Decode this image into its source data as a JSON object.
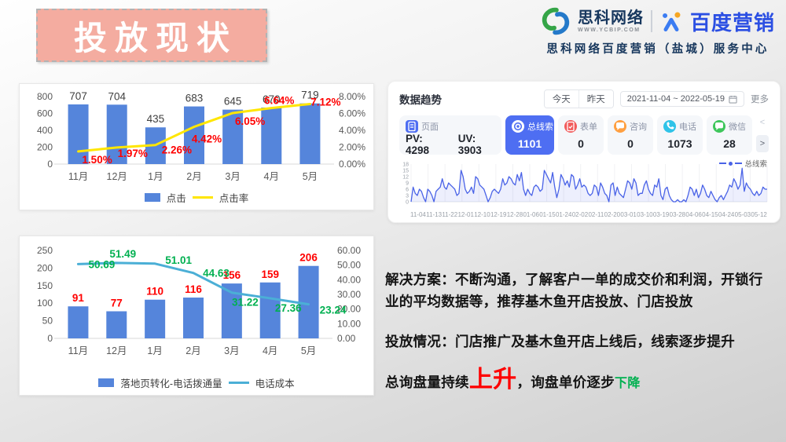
{
  "slide_title": "投放现状",
  "brand": {
    "company": "思科网络",
    "website": "WWW.YCBIP.COM",
    "partner": "百度营销",
    "center": "思科网络百度营销（盐城）服务中心"
  },
  "chart_data": [
    {
      "type": "bar",
      "subtype": "bar+line combo",
      "categories": [
        "11月",
        "12月",
        "1月",
        "2月",
        "3月",
        "4月",
        "5月"
      ],
      "series": [
        {
          "name": "点击",
          "type": "bar",
          "color": "#5585DB",
          "values": [
            707,
            704,
            435,
            683,
            645,
            670,
            719
          ],
          "labels": [
            "707",
            "704",
            "435",
            "683",
            "645",
            "670",
            "719"
          ],
          "label_color": "#404040"
        },
        {
          "name": "点击率",
          "type": "line",
          "color": "#FFE600",
          "values": [
            1.5,
            1.97,
            2.26,
            4.42,
            6.05,
            6.64,
            7.12
          ],
          "labels": [
            "1.50%",
            "1.97%",
            "2.26%",
            "4.42%",
            "6.05%",
            "6.64%",
            "7.12%"
          ],
          "label_color": "#FF0000"
        }
      ],
      "left_axis": {
        "min": 0,
        "max": 800,
        "ticks": [
          "0",
          "200",
          "400",
          "600",
          "800"
        ]
      },
      "right_axis": {
        "min": 0,
        "max": 8,
        "ticks": [
          "0.00%",
          "2.00%",
          "4.00%",
          "6.00%",
          "8.00%"
        ]
      },
      "grid": false,
      "legend_position": "bottom"
    },
    {
      "type": "bar",
      "subtype": "bar+line combo",
      "categories": [
        "11月",
        "12月",
        "1月",
        "2月",
        "3月",
        "4月",
        "5月"
      ],
      "series": [
        {
          "name": "落地页转化-电话拨通量",
          "type": "bar",
          "color": "#5585DB",
          "values": [
            91,
            77,
            110,
            116,
            156,
            159,
            206
          ],
          "labels": [
            "91",
            "77",
            "110",
            "116",
            "156",
            "159",
            "206"
          ],
          "label_color": "#FF0000"
        },
        {
          "name": "电话成本",
          "type": "line",
          "color": "#4BAFD6",
          "values": [
            50.69,
            51.49,
            51.01,
            44.63,
            31.22,
            27.36,
            23.24
          ],
          "labels": [
            "50.69",
            "51.49",
            "51.01",
            "44.63",
            "31.22",
            "27.36",
            "23.24"
          ],
          "label_color": "#00B050"
        }
      ],
      "left_axis": {
        "min": 0,
        "max": 250,
        "ticks": [
          "0",
          "50",
          "100",
          "150",
          "200",
          "250"
        ]
      },
      "right_axis": {
        "min": 0,
        "max": 60,
        "ticks": [
          "0.00",
          "10.00",
          "20.00",
          "30.00",
          "40.00",
          "50.00",
          "60.00"
        ]
      },
      "grid": false,
      "legend_position": "bottom"
    },
    {
      "type": "line",
      "name": "总线索",
      "color": "#4A63E7",
      "y_ticks": [
        18,
        15,
        12,
        9,
        6,
        3,
        0
      ],
      "ylim": [
        0,
        18
      ],
      "x_labels": [
        "11-04",
        "11-13",
        "11-22",
        "12-01",
        "12-10",
        "12-19",
        "12-28",
        "01-06",
        "01-15",
        "01-24",
        "02-02",
        "02-11",
        "02-20",
        "03-01",
        "03-10",
        "03-19",
        "03-28",
        "04-06",
        "04-15",
        "04-24",
        "05-03",
        "05-12"
      ],
      "values": [
        0,
        7,
        4,
        3,
        6,
        5,
        2,
        0,
        6,
        5,
        3,
        0,
        5,
        6,
        7,
        11,
        7,
        6,
        9,
        8,
        7,
        6,
        3,
        4,
        15,
        12,
        6,
        4,
        5,
        7,
        4,
        12,
        11,
        8,
        7,
        6,
        3,
        0,
        2,
        5,
        6,
        5,
        4,
        6,
        11,
        8,
        9,
        12,
        11,
        9,
        8,
        13,
        10,
        14,
        6,
        3,
        6,
        4,
        3,
        7,
        8,
        7,
        5,
        6,
        15,
        13,
        11,
        9,
        14,
        7,
        2,
        6,
        13,
        11,
        8,
        10,
        7,
        13,
        12,
        6,
        8,
        11,
        7,
        8,
        7,
        4,
        3,
        4,
        8,
        7,
        3,
        9,
        7,
        4,
        3,
        0,
        8,
        9,
        3,
        7,
        4,
        3,
        2,
        6,
        10,
        9,
        6,
        11,
        9,
        3,
        4,
        4,
        8,
        10,
        6,
        4,
        3,
        8,
        7,
        11,
        3,
        1,
        6,
        7,
        3,
        1,
        0,
        0,
        1,
        0,
        0,
        1,
        0,
        3,
        7,
        6,
        3,
        6,
        2,
        4,
        8,
        6,
        3,
        2,
        5,
        3,
        1,
        0,
        2,
        3,
        1,
        3,
        5,
        8,
        7,
        11,
        9,
        6,
        8,
        16,
        5,
        9,
        7,
        6,
        4,
        3,
        5,
        3,
        4,
        7,
        6,
        6
      ],
      "grid": "vertical",
      "legend_position": "top-right"
    }
  ],
  "trend_panel": {
    "title": "数据趋势",
    "controls": {
      "today": "今天",
      "yesterday": "昨天",
      "date_range": "2021-11-04 ~ 2022-05-19",
      "more": "更多"
    },
    "cards": [
      {
        "id": "page",
        "icon": "page-icon",
        "label": "页面",
        "color": "#4E6EF2",
        "pairs": [
          [
            "PV",
            "4298"
          ],
          [
            "UV",
            "3903"
          ]
        ],
        "selected": false
      },
      {
        "id": "leads",
        "icon": "leads-icon",
        "label": "总线索",
        "color": "#4E6EF2",
        "value": "1101",
        "selected": true
      },
      {
        "id": "form",
        "icon": "form-icon",
        "label": "表单",
        "color": "#F25B5B",
        "value": "0",
        "selected": false
      },
      {
        "id": "consult",
        "icon": "consult-icon",
        "label": "咨询",
        "color": "#FF9F40",
        "value": "0",
        "selected": false
      },
      {
        "id": "phone",
        "icon": "phone-icon",
        "label": "电话",
        "color": "#2FC3E8",
        "value": "1073",
        "selected": false
      },
      {
        "id": "wechat",
        "icon": "wechat-icon",
        "label": "微信",
        "color": "#3EC65B",
        "value": "28",
        "selected": false
      }
    ],
    "legend": "总线索",
    "chevron_prev": "<",
    "chevron_next": ">"
  },
  "notes": {
    "p1": "解决方案：不断沟通，了解客户一单的成交价和利润，开锁行业的平均数据等，推荐基木鱼开店投放、门店投放",
    "p2": "投放情况：门店推广及基木鱼开店上线后，线索逐步提升",
    "p3_prefix": "总询盘量持续",
    "p3_up": "上升",
    "p3_mid": "，询盘单价逐步",
    "p3_down": "下降"
  }
}
